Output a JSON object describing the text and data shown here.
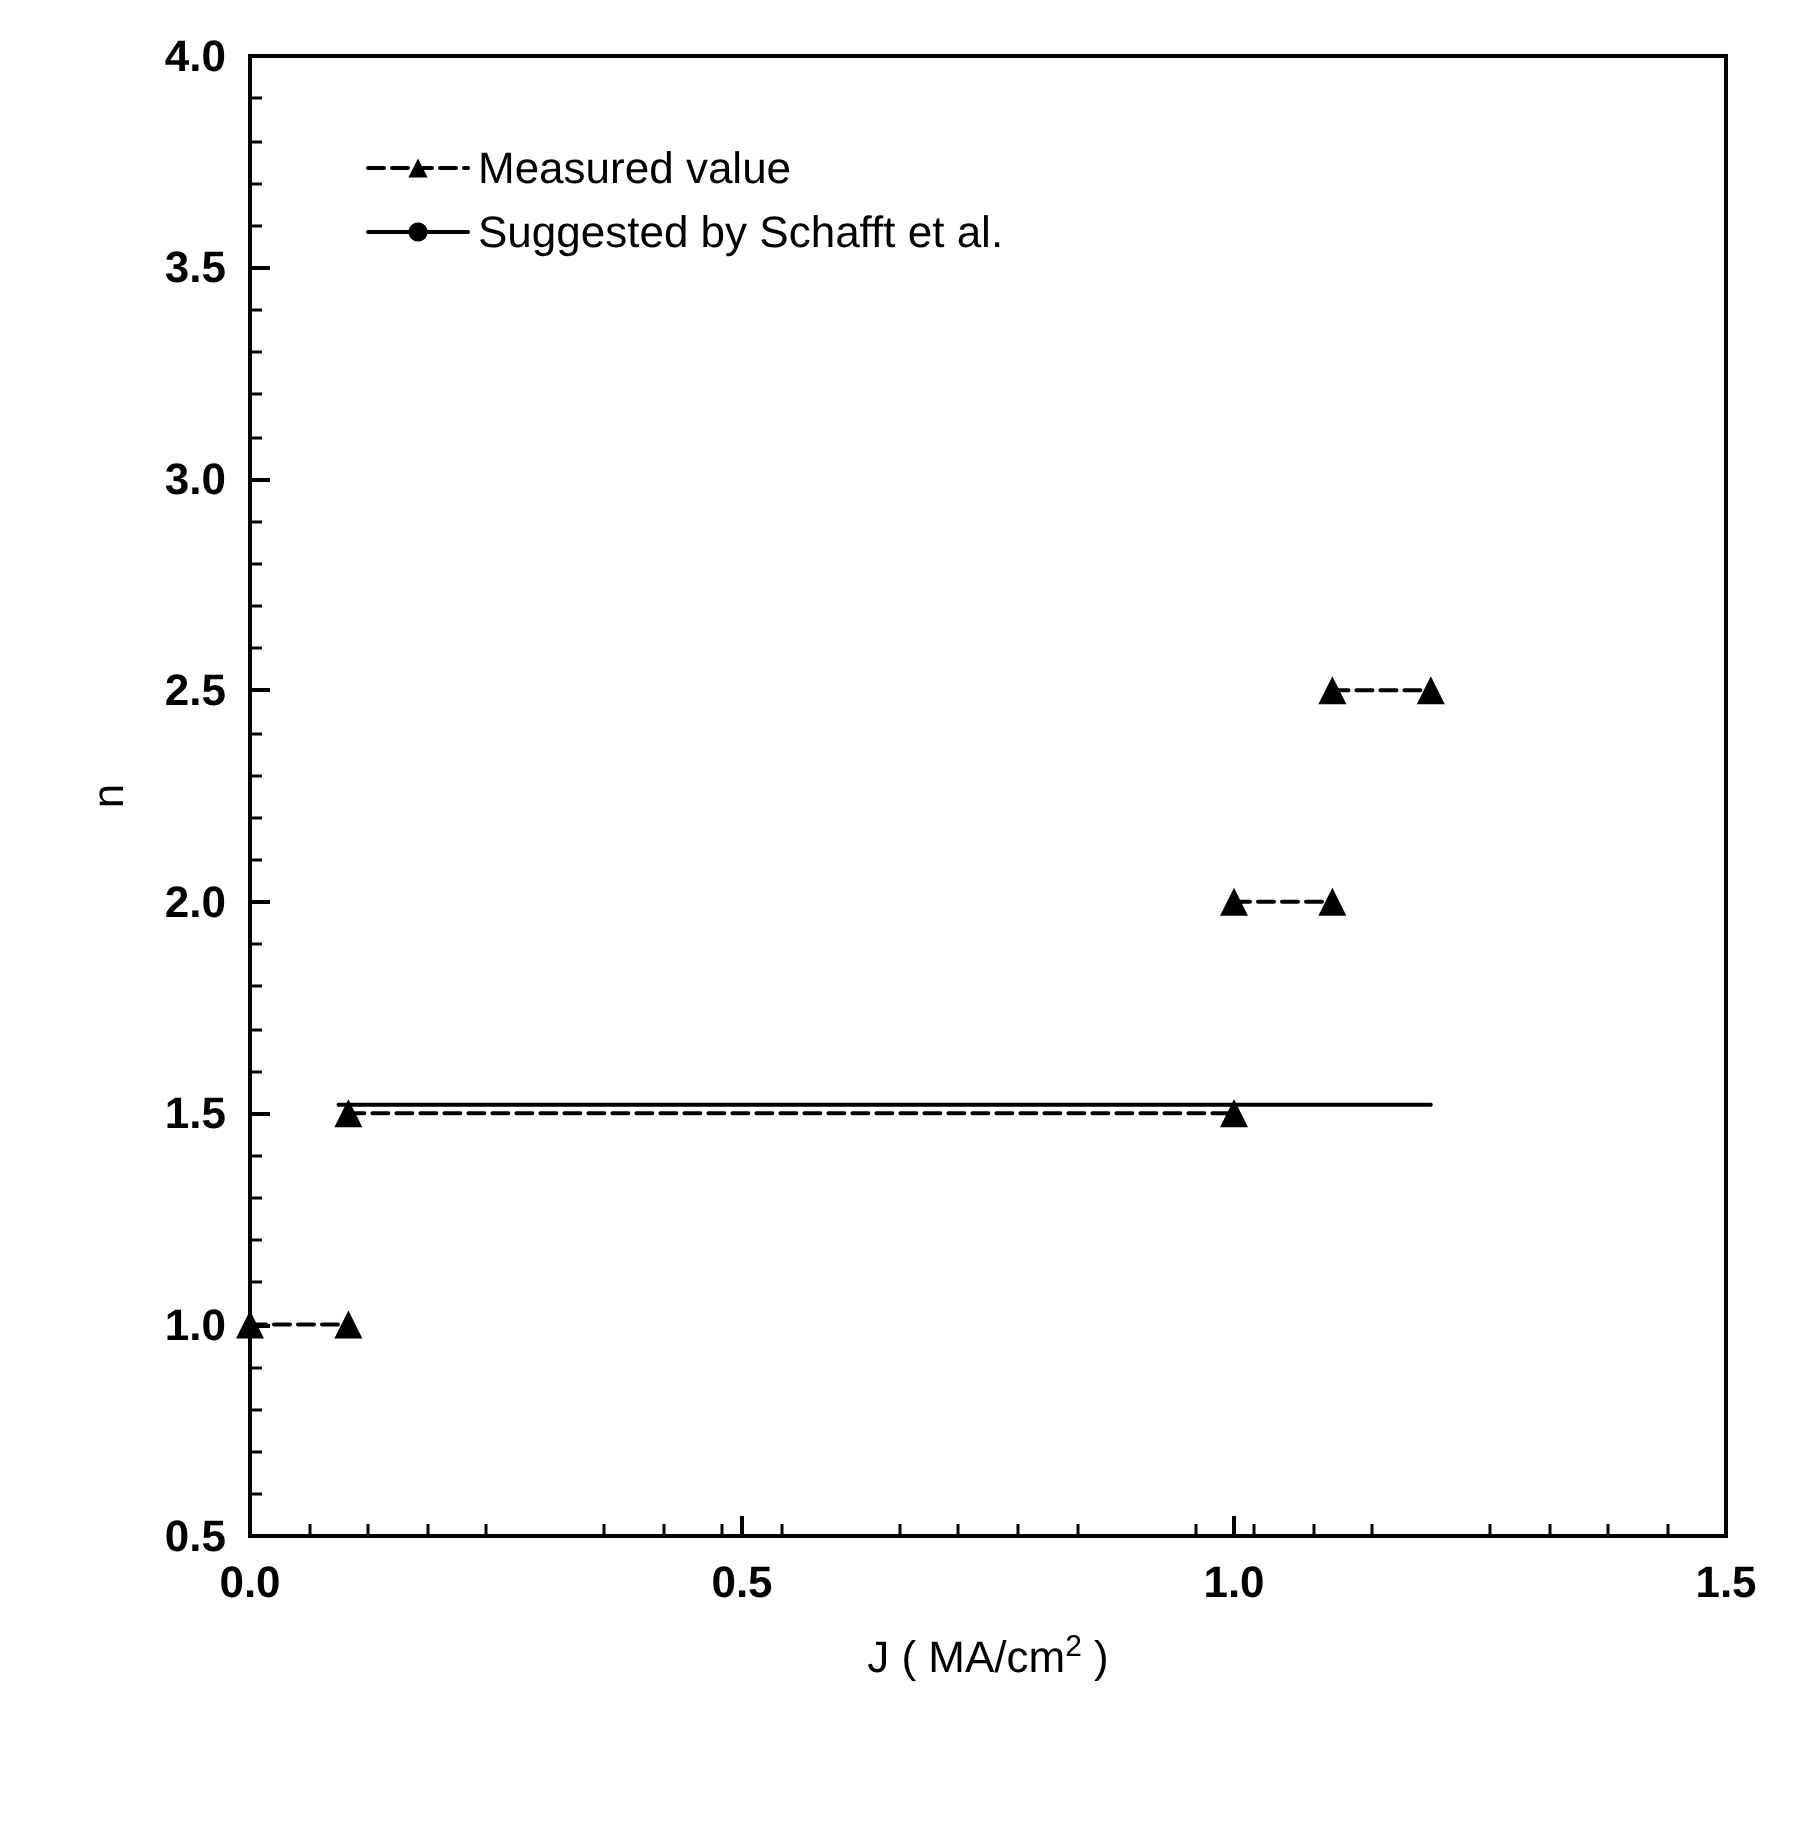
{
  "chart_data": {
    "type": "line",
    "xlabel": "J ( MA/cm$^{2}$ )",
    "ylabel": "n",
    "xlim": [
      0,
      1.5
    ],
    "ylim": [
      0.5,
      4.0
    ],
    "xticks": [
      {
        "value": 0,
        "label": "0.0"
      },
      {
        "value": 0.5,
        "label": "0.5"
      },
      {
        "value": 1,
        "label": "1.0"
      },
      {
        "value": 1.5,
        "label": "1.5"
      }
    ],
    "yticks": [
      {
        "value": 0.5,
        "label": "0.5"
      },
      {
        "value": 1,
        "label": "1.0"
      },
      {
        "value": 1.5,
        "label": "1.5"
      },
      {
        "value": 2,
        "label": "2.0"
      },
      {
        "value": 2.5,
        "label": "2.5"
      },
      {
        "value": 3,
        "label": "3.0"
      },
      {
        "value": 3.5,
        "label": "3.5"
      },
      {
        "value": 4,
        "label": "4.0"
      }
    ],
    "grid": false,
    "legend": "top left",
    "series": [
      {
        "name": "Measured value",
        "color": "#000000",
        "marker": "triangle",
        "line_style": "dashed",
        "x": [
          0,
          0.1
        ],
        "values": [
          1.0,
          1.0
        ]
      },
      {
        "color": "#000000",
        "marker": "triangle",
        "line_style": "dashed",
        "x": [
          0.1,
          1.0
        ],
        "values": [
          1.5,
          1.5
        ]
      },
      {
        "color": "#000000",
        "marker": "triangle",
        "line_style": "dashed",
        "x": [
          1.0,
          1.1
        ],
        "values": [
          2.0,
          2.0
        ]
      },
      {
        "color": "#000000",
        "marker": "triangle",
        "line_style": "dashed",
        "x": [
          1.1,
          1.2
        ],
        "values": [
          2.5,
          2.5
        ]
      },
      {
        "name": "Suggested by Schafft et al.",
        "color": "#000000",
        "marker": "none",
        "line_style": "solid",
        "x": [
          0.09,
          1.2
        ],
        "values": [
          1.52,
          1.52
        ]
      }
    ]
  }
}
